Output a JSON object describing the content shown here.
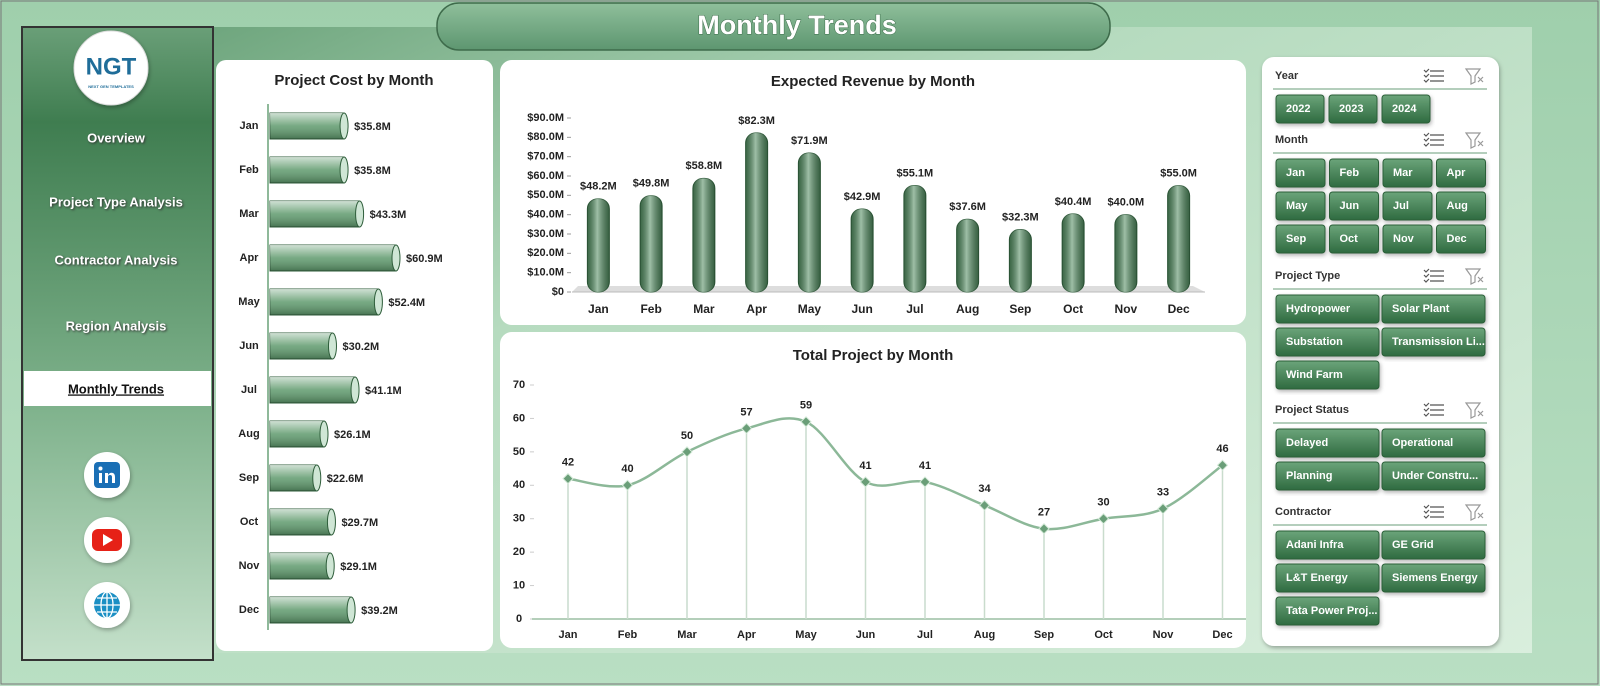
{
  "header": {
    "title": "Monthly Trends"
  },
  "logo": {
    "text": "NGT",
    "tagline": "NEXT GEN TEMPLATES"
  },
  "nav": {
    "items": [
      "Overview",
      "Project Type Analysis",
      "Contractor Analysis",
      "Region Analysis",
      "Monthly Trends"
    ],
    "selected": 4
  },
  "chart_data": [
    {
      "type": "bar",
      "orientation": "horizontal",
      "title": "Project Cost by Month",
      "categories": [
        "Jan",
        "Feb",
        "Mar",
        "Apr",
        "May",
        "Jun",
        "Jul",
        "Aug",
        "Sep",
        "Oct",
        "Nov",
        "Dec"
      ],
      "values": [
        35.8,
        35.8,
        43.3,
        60.9,
        52.4,
        30.2,
        41.1,
        26.1,
        22.6,
        29.7,
        29.1,
        39.2
      ],
      "value_labels": [
        "$35.8M",
        "$35.8M",
        "$43.3M",
        "$60.9M",
        "$52.4M",
        "$30.2M",
        "$41.1M",
        "$26.1M",
        "$22.6M",
        "$29.7M",
        "$29.1M",
        "$39.2M"
      ],
      "color": "#5f9a6d"
    },
    {
      "type": "bar",
      "orientation": "vertical",
      "title": "Expected Revenue  by Month",
      "categories": [
        "Jan",
        "Feb",
        "Mar",
        "Apr",
        "May",
        "Jun",
        "Jul",
        "Aug",
        "Sep",
        "Oct",
        "Nov",
        "Dec"
      ],
      "values": [
        48.2,
        49.8,
        58.8,
        82.3,
        71.9,
        42.9,
        55.1,
        37.6,
        32.3,
        40.4,
        40.0,
        55.0
      ],
      "value_labels": [
        "$48.2M",
        "$49.8M",
        "$58.8M",
        "$82.3M",
        "$71.9M",
        "$42.9M",
        "$55.1M",
        "$37.6M",
        "$32.3M",
        "$40.4M",
        "$40.0M",
        "$55.0M"
      ],
      "color": "#4f8a5e",
      "ylim": [
        0,
        90
      ],
      "yticks": [
        {
          "value": 0,
          "label": "$0"
        },
        {
          "value": 10,
          "label": "$10.0M"
        },
        {
          "value": 20,
          "label": "$20.0M"
        },
        {
          "value": 30,
          "label": "$30.0M"
        },
        {
          "value": 40,
          "label": "$40.0M"
        },
        {
          "value": 50,
          "label": "$50.0M"
        },
        {
          "value": 60,
          "label": "$60.0M"
        },
        {
          "value": 70,
          "label": "$70.0M"
        },
        {
          "value": 80,
          "label": "$80.0M"
        },
        {
          "value": 90,
          "label": "$90.0M"
        }
      ]
    },
    {
      "type": "line",
      "title": "Total Project by Month",
      "categories": [
        "Jan",
        "Feb",
        "Mar",
        "Apr",
        "May",
        "Jun",
        "Jul",
        "Aug",
        "Sep",
        "Oct",
        "Nov",
        "Dec"
      ],
      "values": [
        42,
        40,
        50,
        57,
        59,
        41,
        41,
        34,
        27,
        30,
        33,
        46
      ],
      "color": "#8cb898",
      "marker_color": "#6a9e78",
      "ylim": [
        0,
        70
      ],
      "yticks": [
        0,
        10,
        20,
        30,
        40,
        50,
        60,
        70
      ]
    }
  ],
  "slicers": [
    {
      "title": "Year",
      "items": [
        "2022",
        "2023",
        "2024"
      ]
    },
    {
      "title": "Month",
      "items": [
        "Jan",
        "Feb",
        "Mar",
        "Apr",
        "May",
        "Jun",
        "Jul",
        "Aug",
        "Sep",
        "Oct",
        "Nov",
        "Dec"
      ]
    },
    {
      "title": "Project Type",
      "items": [
        "Hydropower",
        "Solar Plant",
        "Substation",
        "Transmission Li...",
        "Wind Farm"
      ]
    },
    {
      "title": "Project Status",
      "items": [
        "Delayed",
        "Operational",
        "Planning",
        "Under Constru..."
      ]
    },
    {
      "title": "Contractor",
      "items": [
        "Adani Infra",
        "GE Grid",
        "L&T Energy",
        "Siemens Energy",
        "Tata Power Proj..."
      ]
    }
  ]
}
